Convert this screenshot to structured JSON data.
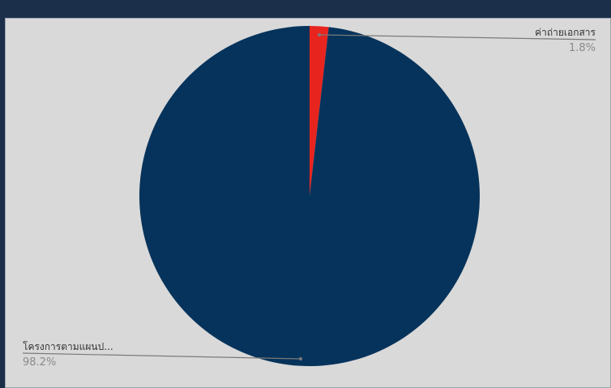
{
  "chart_data": {
    "type": "pie",
    "slices": [
      {
        "label": "ค่าถ่ายเอกสาร",
        "percent_label": "1.8%",
        "value": 1.8,
        "color": "#e8241f"
      },
      {
        "label": "โครงการตามแผนป...",
        "percent_label": "98.2%",
        "value": 98.2,
        "color": "#06335b"
      }
    ]
  },
  "colors": {
    "background": "#1c2f4a",
    "panel": "#d9d9d9",
    "leader_line": "#7a7a7a"
  }
}
